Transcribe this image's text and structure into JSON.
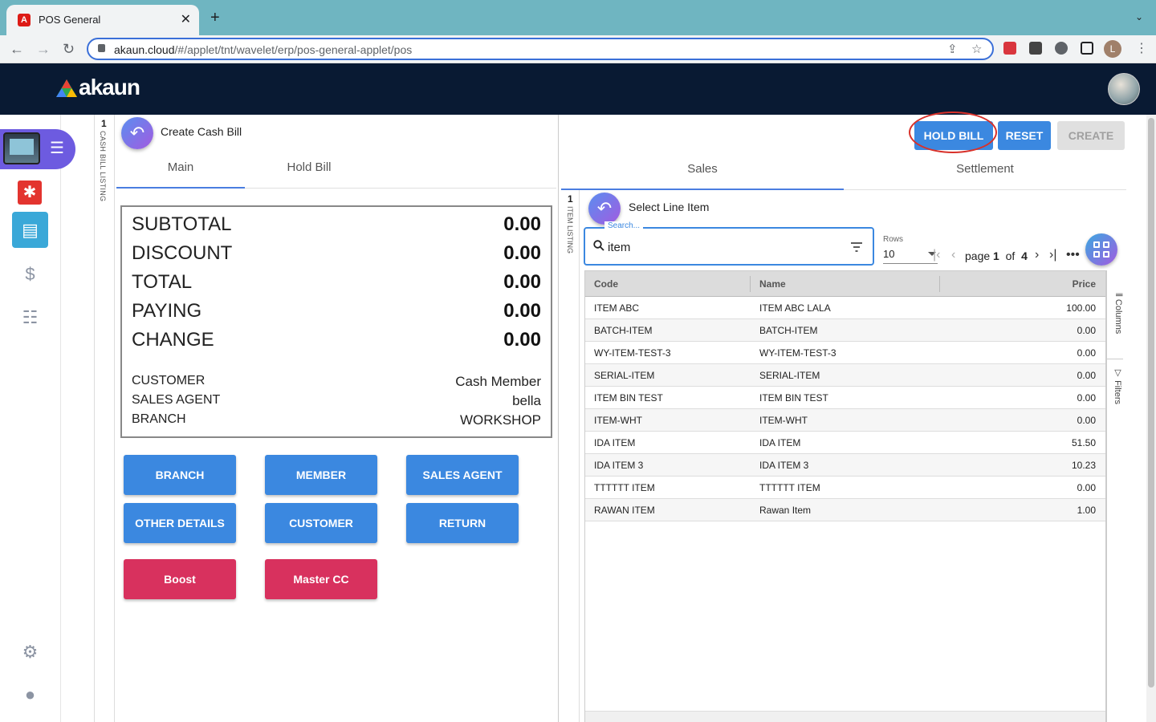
{
  "browser": {
    "tab_title": "POS General",
    "tab_close": "✕",
    "new_tab": "+",
    "url_host": "akaun.cloud",
    "url_path": "/#/applet/tnt/wavelet/erp/pos-general-applet/pos"
  },
  "header": {
    "logo_text": "akaun"
  },
  "profile_initial": "L",
  "sidebar": {
    "items": [
      {
        "name": "pos-applet",
        "icon": "pos-terminal-icon"
      },
      {
        "name": "pdf",
        "icon": "pdf-icon"
      },
      {
        "name": "cash-register",
        "icon": "cash-register-icon"
      },
      {
        "name": "dollar",
        "icon": "dollar-icon",
        "glyph": "$"
      },
      {
        "name": "list",
        "icon": "list-icon"
      }
    ]
  },
  "strips": {
    "left": {
      "number": "1",
      "label": "CASH BILL LISTING"
    },
    "inner": {
      "number": "1",
      "label": "ITEM LISTING"
    }
  },
  "left_panel": {
    "title": "Create Cash Bill",
    "tabs": [
      "Main",
      "Hold Bill"
    ],
    "summary": [
      {
        "label": "SUBTOTAL",
        "value": "0.00"
      },
      {
        "label": "DISCOUNT",
        "value": "0.00"
      },
      {
        "label": "TOTAL",
        "value": "0.00"
      },
      {
        "label": "PAYING",
        "value": "0.00"
      },
      {
        "label": "CHANGE",
        "value": "0.00"
      }
    ],
    "info": [
      {
        "label": "CUSTOMER",
        "value": "Cash Member"
      },
      {
        "label": "SALES AGENT",
        "value": "bella"
      },
      {
        "label": "BRANCH",
        "value": "WORKSHOP"
      }
    ],
    "buttons": [
      "BRANCH",
      "MEMBER",
      "SALES AGENT",
      "OTHER DETAILS",
      "CUSTOMER",
      "RETURN"
    ],
    "payment_buttons": [
      "Boost",
      "Master CC"
    ]
  },
  "right_panel": {
    "actions": {
      "hold": "HOLD BILL",
      "reset": "RESET",
      "create": "CREATE"
    },
    "tabs": [
      "Sales",
      "Settlement"
    ],
    "title": "Select Line Item",
    "search": {
      "legend": "Search...",
      "value": "item"
    },
    "rows": {
      "label": "Rows",
      "value": "10"
    },
    "pager": {
      "prefix": "page",
      "page": "1",
      "of": "of",
      "total": "4"
    },
    "table": {
      "columns": [
        "Code",
        "Name",
        "Price"
      ],
      "rows": [
        [
          "ITEM ABC",
          "ITEM ABC LALA",
          "100.00"
        ],
        [
          "BATCH-ITEM",
          "BATCH-ITEM",
          "0.00"
        ],
        [
          "WY-ITEM-TEST-3",
          "WY-ITEM-TEST-3",
          "0.00"
        ],
        [
          "SERIAL-ITEM",
          "SERIAL-ITEM",
          "0.00"
        ],
        [
          "ITEM BIN TEST",
          "ITEM BIN TEST",
          "0.00"
        ],
        [
          "ITEM-WHT",
          "ITEM-WHT",
          "0.00"
        ],
        [
          "IDA ITEM",
          "IDA ITEM",
          "51.50"
        ],
        [
          "IDA ITEM 3",
          "IDA ITEM 3",
          "10.23"
        ],
        [
          "TTTTTT ITEM",
          "TTTTTT ITEM",
          "0.00"
        ],
        [
          "RAWAN ITEM",
          "Rawan Item",
          "1.00"
        ]
      ]
    },
    "side_tabs": [
      "Columns",
      "Filters"
    ]
  },
  "colors": {
    "primary_button": "#3b88e0",
    "payment_button": "#d8315e",
    "header_bg": "#091a33",
    "highlight_ring": "#d8312a"
  }
}
